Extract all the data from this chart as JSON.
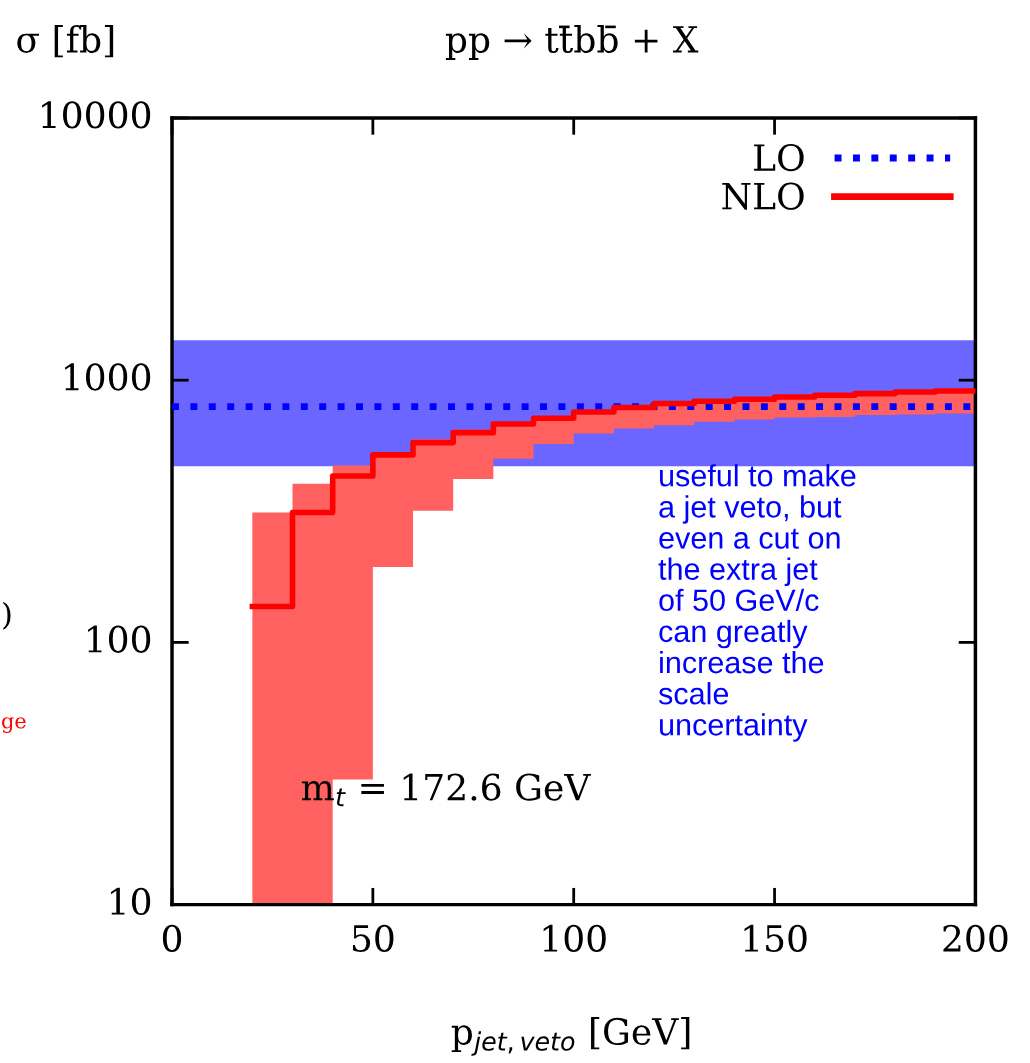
{
  "chart_data": {
    "type": "step",
    "title": "pp → tt̄bb̄ + X",
    "ylabel": "σ [fb]",
    "xlabel": "p$_{jet,veto}$ [GeV]",
    "series": [
      {
        "name": "LO",
        "type": "line",
        "color": "#0000ff",
        "line_style": "dotted",
        "x": [
          0,
          200
        ],
        "values": [
          793,
          793
        ]
      },
      {
        "name": "NLO",
        "color": "#ff0000",
        "line_style": "solid",
        "x": [
          20,
          30,
          40,
          50,
          60,
          70,
          80,
          90,
          100,
          110,
          120,
          130,
          140,
          150,
          160,
          170,
          180,
          190,
          200
        ],
        "values": [
          137,
          313,
          431,
          519,
          578,
          631,
          681,
          716,
          756,
          787,
          815,
          831,
          846,
          863,
          876,
          889,
          902,
          910,
          910
        ],
        "lower": [
          10,
          10,
          30,
          194,
          318,
          420,
          502,
          571,
          626,
          654,
          674,
          694,
          708,
          720,
          724,
          736,
          740,
          746,
          746
        ],
        "upper": [
          313,
          403,
          473,
          528,
          596,
          647,
          692,
          730,
          770,
          800,
          830,
          845,
          860,
          877,
          890,
          903,
          916,
          925,
          925
        ]
      }
    ],
    "bands": [
      {
        "axis": "y",
        "from": 470,
        "to": 1420,
        "color": "#6b66ff"
      }
    ],
    "xlim": [
      0,
      200
    ],
    "xticks": [
      0,
      50,
      100,
      150,
      200
    ],
    "ylim": [
      10,
      10000
    ],
    "yticks": [
      10,
      100,
      1000,
      10000
    ],
    "log": "y",
    "grid": false,
    "legend": "top right",
    "annotations": [
      "m$_{t}$ = 172.6 GeV",
      "useful to make\na jet veto, but\neven a cut on\nthe extra jet\nof 50 GeV/c\ncan greatly\nincrease the\nscale\nuncertainty",
      ")",
      "ge"
    ]
  }
}
